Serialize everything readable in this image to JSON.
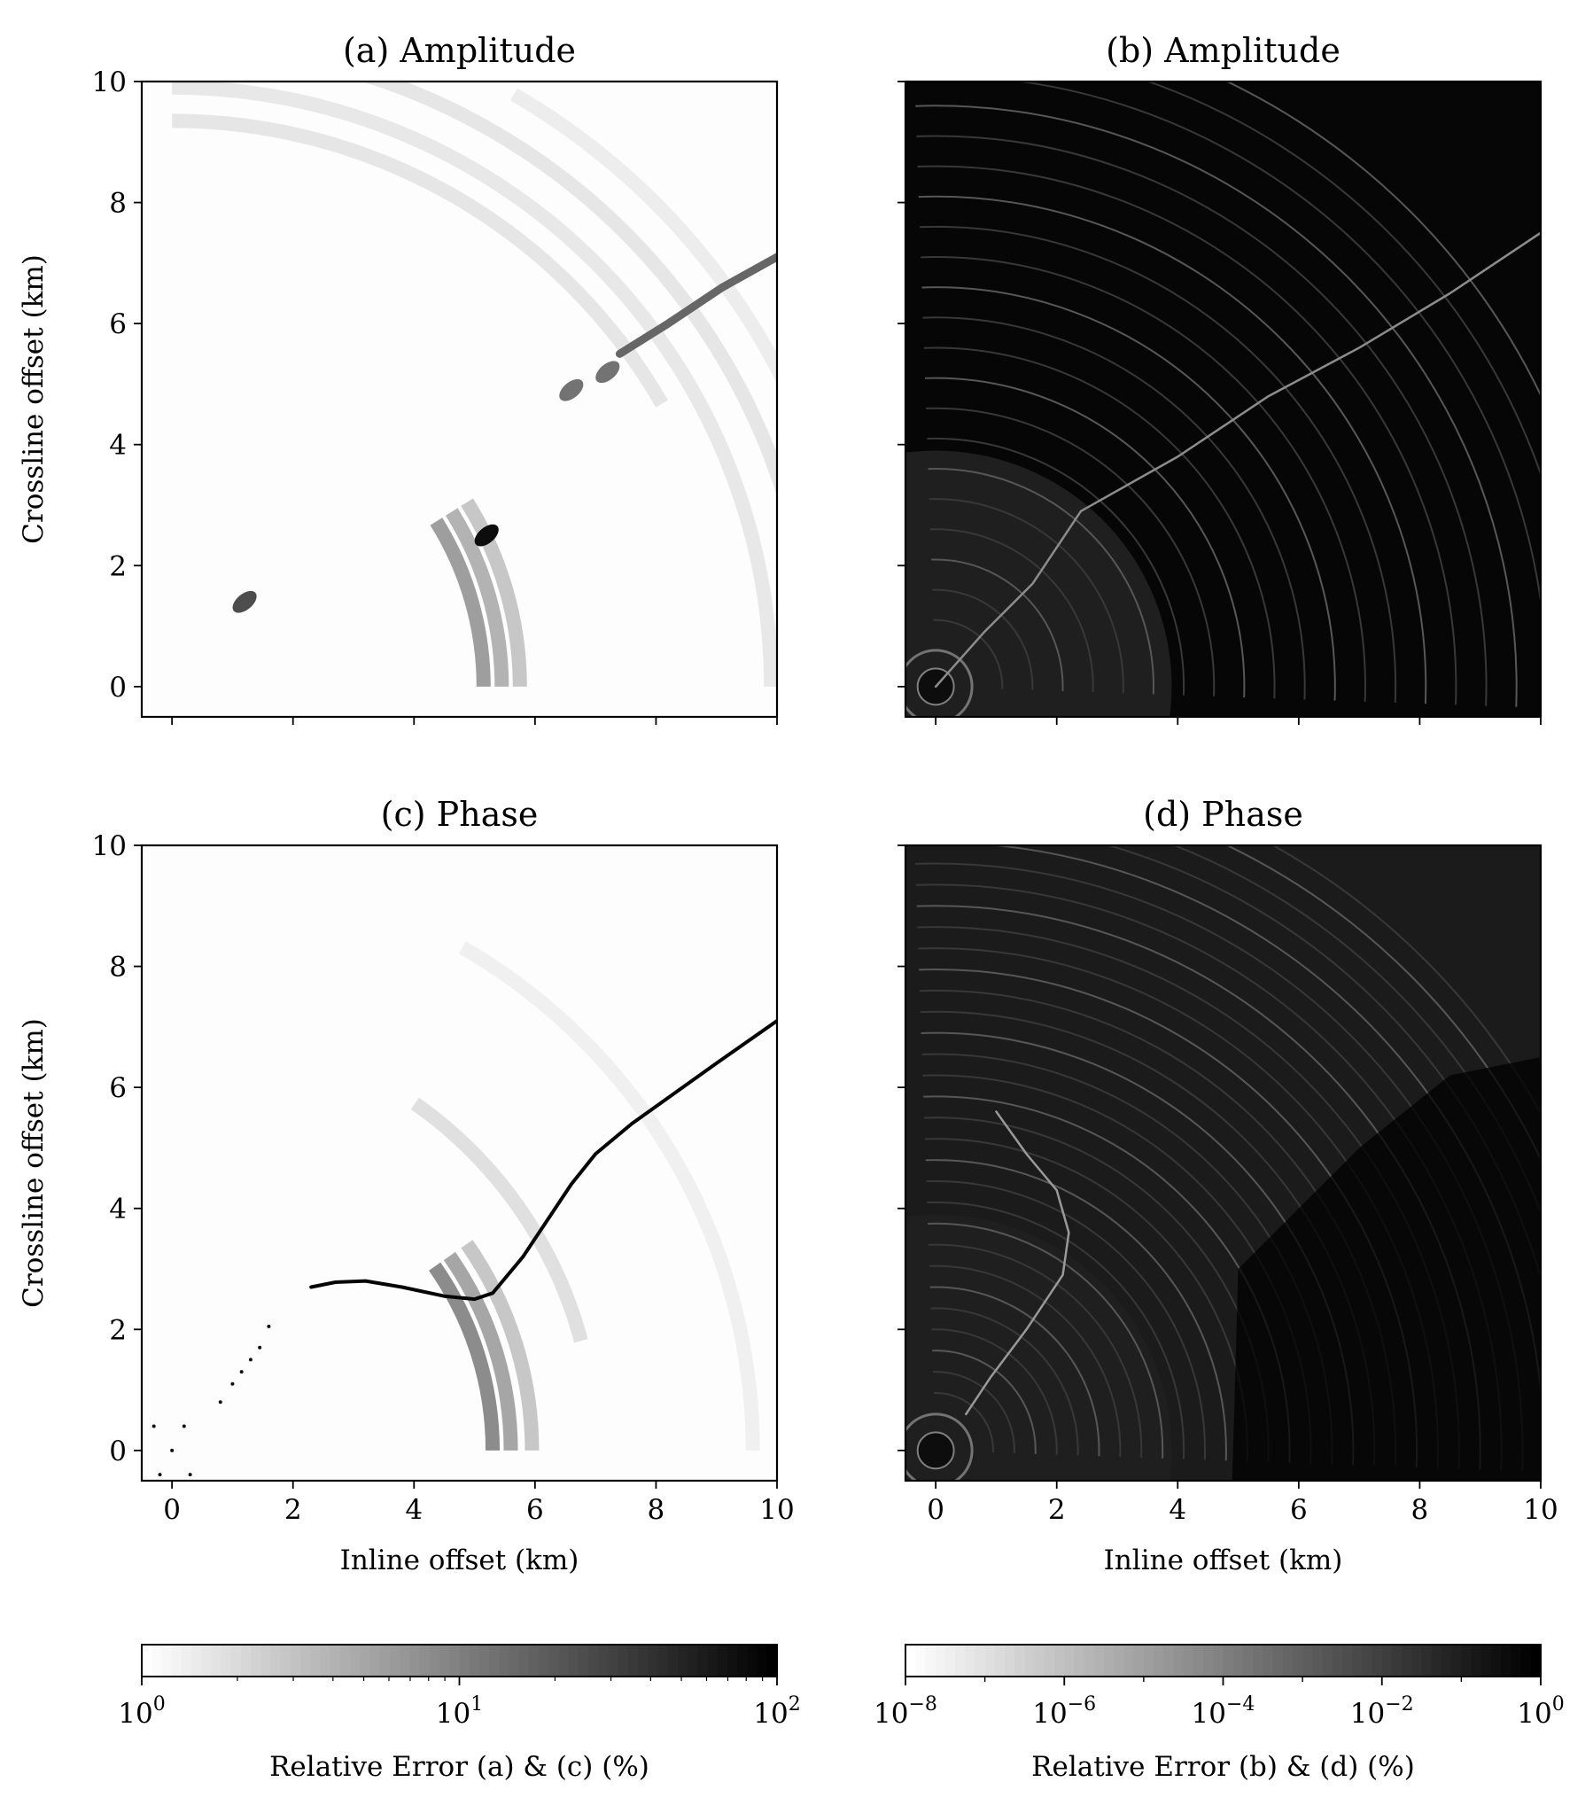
{
  "chart_data": [
    {
      "type": "heatmap",
      "panel": "a",
      "title": "(a) Amplitude",
      "xlabel": "",
      "ylabel": "Crossline offset (km)",
      "xlim": [
        -0.5,
        10
      ],
      "ylim": [
        -0.5,
        10
      ],
      "xticks": [
        0,
        2,
        4,
        6,
        8,
        10
      ],
      "yticks": [
        0,
        2,
        4,
        6,
        8,
        10
      ],
      "show_x_tick_labels": false,
      "show_y_tick_labels": true,
      "background": "#fdfdfd",
      "colorbar": "left",
      "features": {
        "rings": [
          {
            "r": 5.15,
            "from_deg": 0,
            "to_deg": 32,
            "shade": 0.38
          },
          {
            "r": 5.45,
            "from_deg": 0,
            "to_deg": 32,
            "shade": 0.3
          },
          {
            "r": 5.75,
            "from_deg": 0,
            "to_deg": 32,
            "shade": 0.22
          },
          {
            "r": 9.35,
            "from_deg": 30,
            "to_deg": 90,
            "shade": 0.1
          },
          {
            "r": 9.9,
            "from_deg": 0,
            "to_deg": 90,
            "shade": 0.09
          },
          {
            "r": 10.6,
            "from_deg": 0,
            "to_deg": 80,
            "shade": 0.1
          },
          {
            "r": 11.3,
            "from_deg": 10,
            "to_deg": 60,
            "shade": 0.07
          }
        ],
        "caustic": [
          [
            7.4,
            5.5
          ],
          [
            8.2,
            6.0
          ],
          [
            9.1,
            6.6
          ],
          [
            10.0,
            7.1
          ]
        ],
        "blobs": [
          {
            "x": 5.2,
            "y": 2.5,
            "shade": 0.95
          },
          {
            "x": 6.6,
            "y": 4.9,
            "shade": 0.55
          },
          {
            "x": 7.2,
            "y": 5.2,
            "shade": 0.55
          },
          {
            "x": 1.2,
            "y": 1.4,
            "shade": 0.7
          }
        ]
      }
    },
    {
      "type": "heatmap",
      "panel": "b",
      "title": "(b) Amplitude",
      "xlabel": "",
      "ylabel": "",
      "xlim": [
        -0.5,
        10
      ],
      "ylim": [
        -0.5,
        10
      ],
      "xticks": [
        0,
        2,
        4,
        6,
        8,
        10
      ],
      "yticks": [
        0,
        2,
        4,
        6,
        8,
        10
      ],
      "show_x_tick_labels": false,
      "show_y_tick_labels": false,
      "background": "#060606",
      "colorbar": "right",
      "features": {
        "inner_disc_radius": 3.9,
        "ring_spacing": 0.5,
        "ring_from": 0.6,
        "ring_to": 11.5,
        "caustic": [
          [
            0,
            0
          ],
          [
            0.8,
            0.9
          ],
          [
            1.6,
            1.7
          ],
          [
            2.4,
            2.9
          ],
          [
            4.0,
            3.8
          ],
          [
            5.5,
            4.8
          ],
          [
            7.0,
            5.6
          ],
          [
            8.5,
            6.5
          ],
          [
            10,
            7.5
          ]
        ]
      }
    },
    {
      "type": "heatmap",
      "panel": "c",
      "title": "(c) Phase",
      "xlabel": "Inline offset (km)",
      "ylabel": "Crossline offset (km)",
      "xlim": [
        -0.5,
        10
      ],
      "ylim": [
        -0.5,
        10
      ],
      "xticks": [
        0,
        2,
        4,
        6,
        8,
        10
      ],
      "yticks": [
        0,
        2,
        4,
        6,
        8,
        10
      ],
      "show_x_tick_labels": true,
      "show_y_tick_labels": true,
      "background": "#fdfdfd",
      "colorbar": "left",
      "features": {
        "rings": [
          {
            "r": 5.3,
            "from_deg": 0,
            "to_deg": 35,
            "shade": 0.45
          },
          {
            "r": 5.6,
            "from_deg": 0,
            "to_deg": 35,
            "shade": 0.35
          },
          {
            "r": 5.95,
            "from_deg": 0,
            "to_deg": 35,
            "shade": 0.22
          },
          {
            "r": 7.0,
            "from_deg": 15,
            "to_deg": 55,
            "shade": 0.12
          },
          {
            "r": 9.6,
            "from_deg": 0,
            "to_deg": 60,
            "shade": 0.06
          }
        ],
        "phase_curve": [
          [
            2.3,
            2.7
          ],
          [
            2.7,
            2.78
          ],
          [
            3.2,
            2.8
          ],
          [
            3.8,
            2.7
          ],
          [
            4.5,
            2.55
          ],
          [
            5.0,
            2.5
          ],
          [
            5.3,
            2.6
          ],
          [
            5.8,
            3.2
          ],
          [
            6.2,
            3.8
          ],
          [
            6.6,
            4.4
          ],
          [
            7.0,
            4.9
          ],
          [
            7.6,
            5.4
          ],
          [
            8.3,
            5.9
          ],
          [
            9.0,
            6.4
          ],
          [
            10.0,
            7.1
          ]
        ],
        "scatter": [
          [
            0.8,
            0.8
          ],
          [
            1.0,
            1.1
          ],
          [
            1.15,
            1.3
          ],
          [
            1.3,
            1.5
          ],
          [
            1.45,
            1.7
          ],
          [
            1.6,
            2.05
          ],
          [
            -0.3,
            0.4
          ],
          [
            0,
            0
          ],
          [
            0.2,
            0.4
          ],
          [
            -0.2,
            -0.4
          ],
          [
            0.3,
            -0.4
          ]
        ]
      }
    },
    {
      "type": "heatmap",
      "panel": "d",
      "title": "(d) Phase",
      "xlabel": "Inline offset (km)",
      "ylabel": "",
      "xlim": [
        -0.5,
        10
      ],
      "ylim": [
        -0.5,
        10
      ],
      "xticks": [
        0,
        2,
        4,
        6,
        8,
        10
      ],
      "yticks": [
        0,
        2,
        4,
        6,
        8,
        10
      ],
      "show_x_tick_labels": true,
      "show_y_tick_labels": false,
      "background": "#1b1b1b",
      "colorbar": "right",
      "features": {
        "inner_disc_radius": 3.9,
        "ring_spacing": 0.35,
        "ring_from": 0.6,
        "ring_to": 11.5,
        "dark_region": [
          [
            4.9,
            -0.5
          ],
          [
            10,
            -0.5
          ],
          [
            10,
            6.5
          ],
          [
            8.5,
            6.2
          ],
          [
            7.0,
            5.0
          ],
          [
            6.0,
            4.0
          ],
          [
            5.0,
            3.0
          ]
        ],
        "crack": [
          [
            1.0,
            5.6
          ],
          [
            1.5,
            4.9
          ],
          [
            2.0,
            4.3
          ],
          [
            2.2,
            3.6
          ],
          [
            2.1,
            2.9
          ],
          [
            1.5,
            2.0
          ],
          [
            0.9,
            1.2
          ],
          [
            0.5,
            0.6
          ]
        ]
      }
    }
  ],
  "colorbars": {
    "left": {
      "label": "Relative Error (a) & (c) (%)",
      "scale": "log",
      "min_exp": 0,
      "max_exp": 2,
      "tick_labels": [
        {
          "exp": 0,
          "base": "10",
          "sup": "0"
        },
        {
          "exp": 1,
          "base": "10",
          "sup": "1"
        },
        {
          "exp": 2,
          "base": "10",
          "sup": "2"
        }
      ]
    },
    "right": {
      "label": "Relative Error (b) & (d) (%)",
      "scale": "log",
      "min_exp": -8,
      "max_exp": 0,
      "tick_labels": [
        {
          "exp": -8,
          "base": "10",
          "sup": "−8"
        },
        {
          "exp": -6,
          "base": "10",
          "sup": "−6"
        },
        {
          "exp": -4,
          "base": "10",
          "sup": "−4"
        },
        {
          "exp": -2,
          "base": "10",
          "sup": "−2"
        },
        {
          "exp": 0,
          "base": "10",
          "sup": "0"
        }
      ]
    }
  }
}
